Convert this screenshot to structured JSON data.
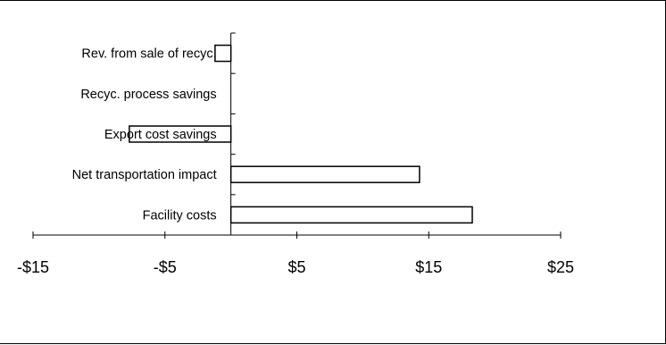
{
  "chart_data": {
    "type": "bar",
    "orientation": "horizontal",
    "title": "",
    "xlabel": "",
    "ylabel": "",
    "categories": [
      "Rev. from sale of recyc.",
      "Recyc. process savings",
      "Export cost savings",
      "Net transportation impact",
      "Facility costs"
    ],
    "values": [
      -1.2,
      0,
      -7.7,
      14.3,
      18.3
    ],
    "xlim": [
      -15,
      25
    ],
    "x_ticks": [
      -15,
      -5,
      5,
      15,
      25
    ],
    "x_tick_labels": [
      "-$15",
      "-$5",
      "$5",
      "$15",
      "$25"
    ],
    "grid": false,
    "legend": "none",
    "colors": {
      "bar_fill": "#ffffff",
      "bar_stroke": "#000000",
      "axis": "#000000",
      "background": "#ffffff"
    }
  }
}
